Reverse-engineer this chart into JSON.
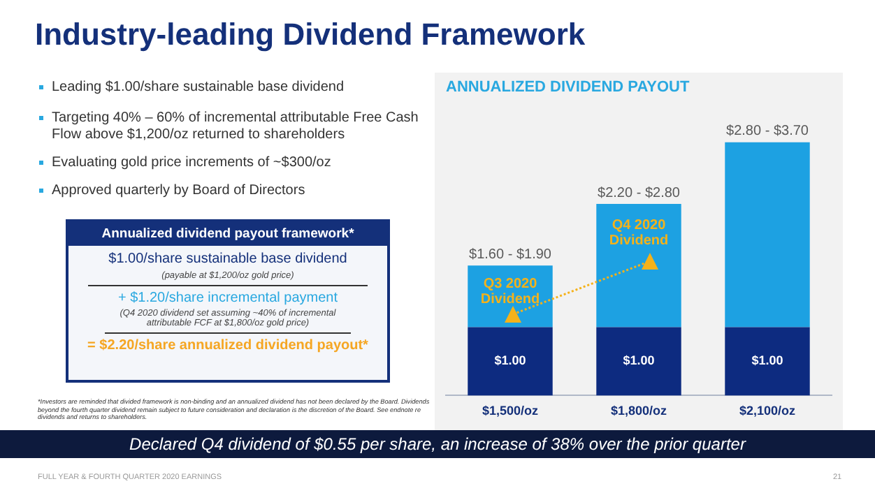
{
  "chart_data": {
    "type": "bar",
    "title": "ANNUALIZED DIVIDEND PAYOUT",
    "stacked": true,
    "tick_labels": "x",
    "categories": [
      "$1,500/oz",
      "$1,800/oz",
      "$2,100/oz"
    ],
    "series": [
      {
        "color": "#0d2b80",
        "values": [
          1.0,
          1.0,
          1.0
        ],
        "value_labels": [
          "$1.00",
          "$1.00",
          "$1.00"
        ]
      },
      {
        "color": "#1da1e2",
        "values": [
          0.9,
          1.8,
          2.7
        ]
      }
    ],
    "totals": [
      "$1.60 - $1.90",
      "$2.20 - $2.80",
      "$2.80 - $3.70"
    ],
    "annotations": [
      "Industry-leading Dividend Framework",
      "Leading $1.00/share sustainable base dividend",
      "Targeting 40% – 60% of incremental attributable Free Cash Flow above $1,200/oz returned to shareholders",
      "Evaluating gold price increments of ~$300/oz",
      "Approved quarterly by Board of Directors",
      "Annualized dividend payout framework*",
      "$1.00/share sustainable base dividend",
      "(payable at $1,200/oz gold price)",
      "+ $1.20/share incremental payment",
      "(Q4 2020 dividend set assuming ~40% of incremental attributable FCF at $1,800/oz gold price)",
      "= $2.20/share annualized dividend payout*",
      "*Investors are reminded that divided framework is non-binding and an annualized dividend has not been declared by the Board. Dividends beyond the fourth quarter dividend remain subject to future consideration and declaration is the discretion of the Board. See endnote re dividends and returns to shareholders.",
      "Declared Q4 dividend of $0.55 per share, an increase of 38% over the prior quarter",
      "FULL YEAR & FOURTH QUARTER 2020 EARNINGS",
      "21",
      "Q3 2020 Dividend",
      "Q4 2020 Dividend"
    ]
  }
}
